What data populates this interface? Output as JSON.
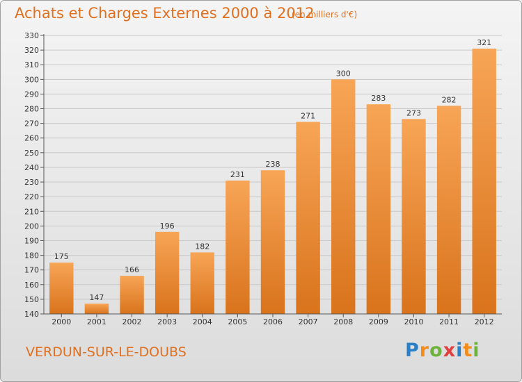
{
  "header": {
    "title": "Achats et Charges Externes 2000 à 2012",
    "subtitle": "(en milliers d'€)"
  },
  "footer": {
    "place": "VERDUN-SUR-LE-DOUBS",
    "logo": {
      "letters": [
        "P",
        "r",
        "o",
        "x",
        "i",
        "t",
        "i"
      ],
      "colors": [
        "#2a7fc9",
        "#f28c1a",
        "#6bb33a",
        "#e04040",
        "#2a7fc9",
        "#f28c1a",
        "#6bb33a"
      ]
    }
  },
  "chart_data": {
    "type": "bar",
    "title": "Achats et Charges Externes 2000 à 2012",
    "xlabel": "",
    "ylabel": "",
    "categories": [
      "2000",
      "2001",
      "2002",
      "2003",
      "2004",
      "2005",
      "2006",
      "2007",
      "2008",
      "2009",
      "2010",
      "2011",
      "2012"
    ],
    "values": [
      175,
      147,
      166,
      196,
      182,
      231,
      238,
      271,
      300,
      283,
      273,
      282,
      321
    ],
    "ylim": [
      140,
      330
    ],
    "ytick_step": 10,
    "grid": true,
    "legend": "none",
    "bar_color_top": "#f7a556",
    "bar_color_bottom": "#d9731c"
  }
}
